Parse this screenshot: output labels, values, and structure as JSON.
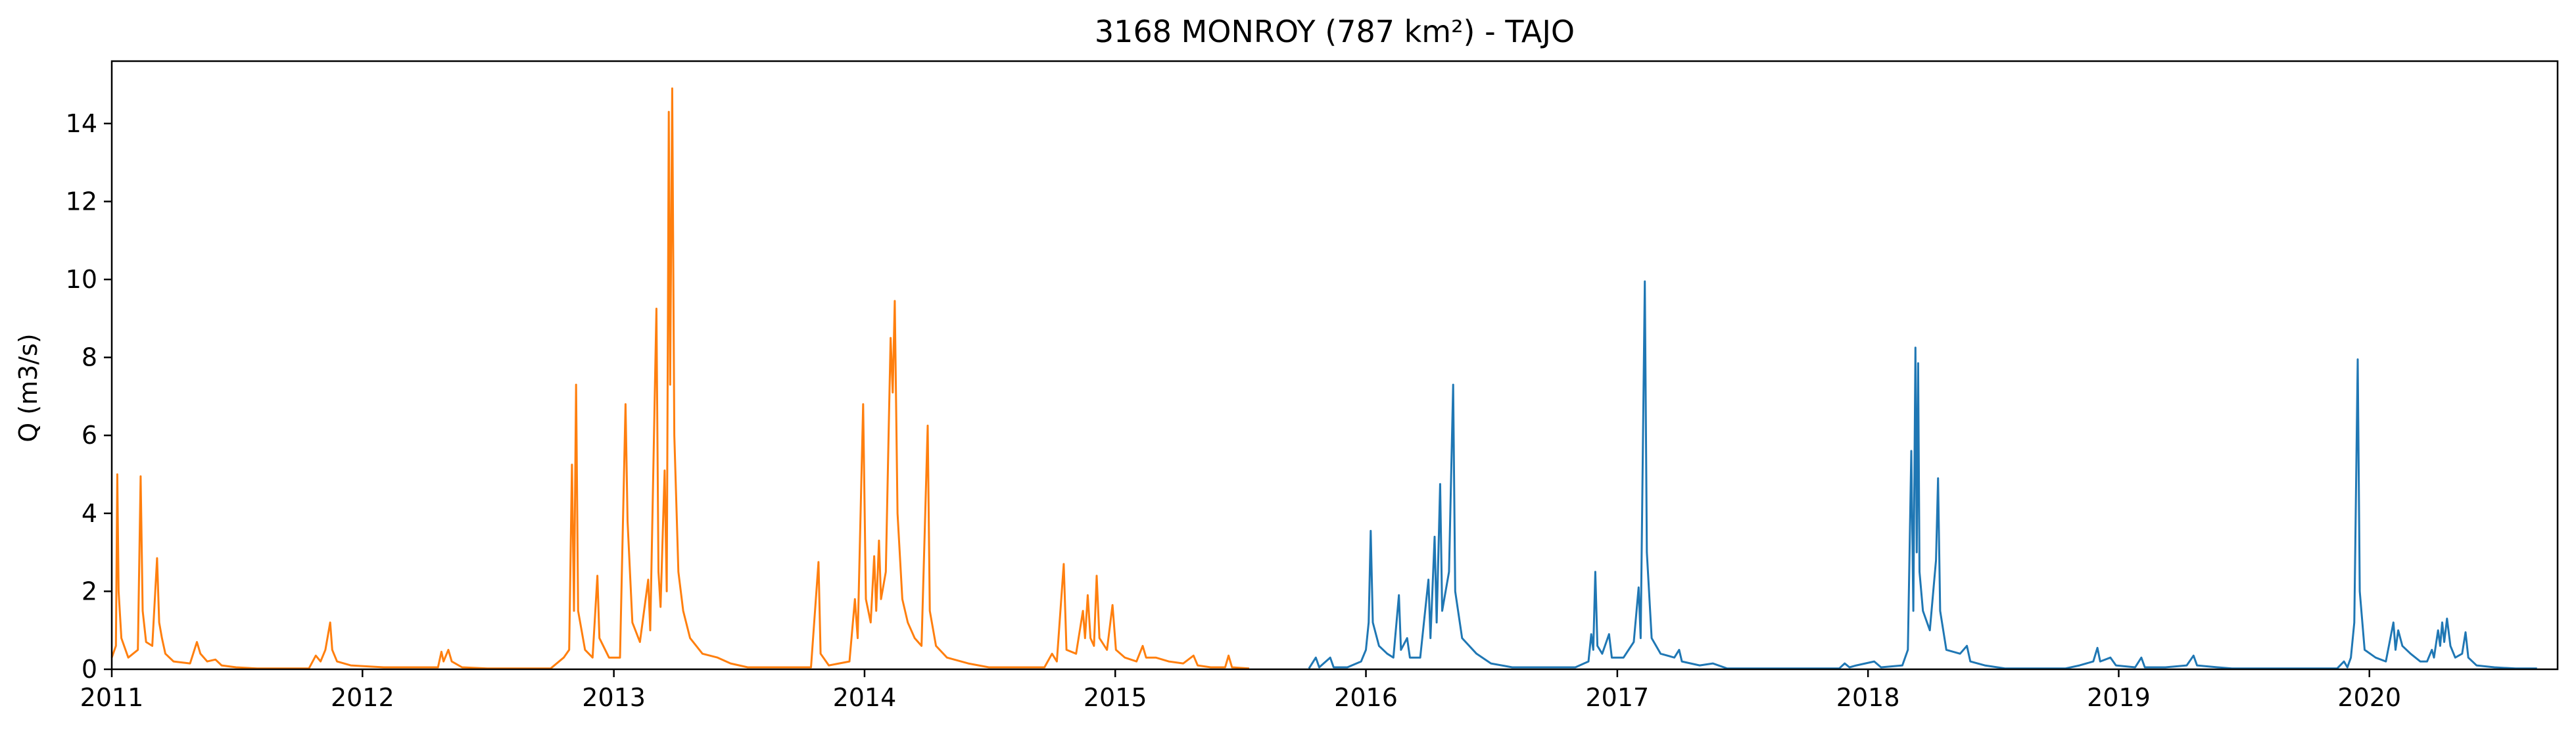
{
  "chart_data": {
    "type": "line",
    "title": "3168 MONROY (787 km²) - TAJO",
    "xlabel": "",
    "ylabel": "Q (m3/s)",
    "xlim": [
      "2011-01-01",
      "2020-10-01"
    ],
    "ylim": [
      0,
      15.6
    ],
    "xticks": [
      "2011",
      "2012",
      "2013",
      "2014",
      "2015",
      "2016",
      "2017",
      "2018",
      "2019",
      "2020"
    ],
    "yticks": [
      0,
      2,
      4,
      6,
      8,
      10,
      12,
      14
    ],
    "grid": false,
    "legend": "none",
    "series": [
      {
        "color": "#ff7f0e",
        "points": [
          [
            "2011-01-01",
            0.3
          ],
          [
            "2011-01-07",
            0.6
          ],
          [
            "2011-01-09",
            5.0
          ],
          [
            "2011-01-11",
            2.0
          ],
          [
            "2011-01-15",
            0.8
          ],
          [
            "2011-01-25",
            0.3
          ],
          [
            "2011-02-08",
            0.5
          ],
          [
            "2011-02-12",
            4.95
          ],
          [
            "2011-02-15",
            1.5
          ],
          [
            "2011-02-20",
            0.7
          ],
          [
            "2011-03-01",
            0.6
          ],
          [
            "2011-03-08",
            2.85
          ],
          [
            "2011-03-11",
            1.2
          ],
          [
            "2011-03-15",
            0.8
          ],
          [
            "2011-03-20",
            0.4
          ],
          [
            "2011-04-01",
            0.2
          ],
          [
            "2011-04-25",
            0.15
          ],
          [
            "2011-05-05",
            0.7
          ],
          [
            "2011-05-10",
            0.4
          ],
          [
            "2011-05-20",
            0.2
          ],
          [
            "2011-06-01",
            0.25
          ],
          [
            "2011-06-10",
            0.1
          ],
          [
            "2011-07-01",
            0.05
          ],
          [
            "2011-08-01",
            0.02
          ],
          [
            "2011-10-15",
            0.02
          ],
          [
            "2011-10-25",
            0.35
          ],
          [
            "2011-11-01",
            0.2
          ],
          [
            "2011-11-08",
            0.5
          ],
          [
            "2011-11-15",
            1.2
          ],
          [
            "2011-11-18",
            0.5
          ],
          [
            "2011-11-25",
            0.2
          ],
          [
            "2011-12-15",
            0.1
          ],
          [
            "2012-02-01",
            0.05
          ],
          [
            "2012-04-20",
            0.05
          ],
          [
            "2012-04-25",
            0.45
          ],
          [
            "2012-04-28",
            0.2
          ],
          [
            "2012-05-05",
            0.5
          ],
          [
            "2012-05-10",
            0.2
          ],
          [
            "2012-05-25",
            0.05
          ],
          [
            "2012-07-01",
            0.02
          ],
          [
            "2012-10-01",
            0.02
          ],
          [
            "2012-10-20",
            0.3
          ],
          [
            "2012-10-28",
            0.5
          ],
          [
            "2012-11-01",
            5.25
          ],
          [
            "2012-11-04",
            1.5
          ],
          [
            "2012-11-07",
            7.3
          ],
          [
            "2012-11-10",
            1.5
          ],
          [
            "2012-11-20",
            0.5
          ],
          [
            "2012-12-01",
            0.3
          ],
          [
            "2012-12-08",
            2.4
          ],
          [
            "2012-12-11",
            0.8
          ],
          [
            "2012-12-25",
            0.3
          ],
          [
            "2013-01-10",
            0.3
          ],
          [
            "2013-01-18",
            6.8
          ],
          [
            "2013-01-21",
            3.8
          ],
          [
            "2013-01-28",
            1.2
          ],
          [
            "2013-02-08",
            0.7
          ],
          [
            "2013-02-20",
            2.3
          ],
          [
            "2013-02-23",
            1.0
          ],
          [
            "2013-03-04",
            9.25
          ],
          [
            "2013-03-07",
            2.5
          ],
          [
            "2013-03-10",
            1.6
          ],
          [
            "2013-03-16",
            5.1
          ],
          [
            "2013-03-19",
            2.0
          ],
          [
            "2013-03-22",
            14.3
          ],
          [
            "2013-03-24",
            7.3
          ],
          [
            "2013-03-27",
            14.9
          ],
          [
            "2013-03-30",
            6.0
          ],
          [
            "2013-04-05",
            2.5
          ],
          [
            "2013-04-12",
            1.5
          ],
          [
            "2013-04-22",
            0.8
          ],
          [
            "2013-05-10",
            0.4
          ],
          [
            "2013-06-01",
            0.3
          ],
          [
            "2013-06-20",
            0.15
          ],
          [
            "2013-07-15",
            0.05
          ],
          [
            "2013-10-15",
            0.05
          ],
          [
            "2013-10-26",
            2.75
          ],
          [
            "2013-10-29",
            0.4
          ],
          [
            "2013-11-10",
            0.1
          ],
          [
            "2013-12-10",
            0.2
          ],
          [
            "2013-12-18",
            1.8
          ],
          [
            "2013-12-22",
            0.8
          ],
          [
            "2013-12-30",
            6.8
          ],
          [
            "2014-01-03",
            1.8
          ],
          [
            "2014-01-10",
            1.2
          ],
          [
            "2014-01-15",
            2.9
          ],
          [
            "2014-01-18",
            1.5
          ],
          [
            "2014-01-22",
            3.3
          ],
          [
            "2014-01-25",
            1.8
          ],
          [
            "2014-02-01",
            2.5
          ],
          [
            "2014-02-05",
            6.0
          ],
          [
            "2014-02-08",
            8.5
          ],
          [
            "2014-02-11",
            7.1
          ],
          [
            "2014-02-14",
            9.45
          ],
          [
            "2014-02-18",
            4.0
          ],
          [
            "2014-02-25",
            1.8
          ],
          [
            "2014-03-05",
            1.2
          ],
          [
            "2014-03-15",
            0.8
          ],
          [
            "2014-03-25",
            0.6
          ],
          [
            "2014-04-03",
            6.25
          ],
          [
            "2014-04-06",
            1.5
          ],
          [
            "2014-04-15",
            0.6
          ],
          [
            "2014-05-01",
            0.3
          ],
          [
            "2014-06-01",
            0.15
          ],
          [
            "2014-07-01",
            0.05
          ],
          [
            "2014-09-20",
            0.05
          ],
          [
            "2014-10-01",
            0.4
          ],
          [
            "2014-10-08",
            0.2
          ],
          [
            "2014-10-18",
            2.7
          ],
          [
            "2014-10-22",
            0.5
          ],
          [
            "2014-11-05",
            0.4
          ],
          [
            "2014-11-15",
            1.5
          ],
          [
            "2014-11-18",
            0.8
          ],
          [
            "2014-11-22",
            1.9
          ],
          [
            "2014-11-26",
            0.8
          ],
          [
            "2014-12-01",
            0.6
          ],
          [
            "2014-12-05",
            2.4
          ],
          [
            "2014-12-09",
            0.8
          ],
          [
            "2014-12-20",
            0.5
          ],
          [
            "2014-12-28",
            1.65
          ],
          [
            "2015-01-02",
            0.5
          ],
          [
            "2015-01-15",
            0.3
          ],
          [
            "2015-02-01",
            0.2
          ],
          [
            "2015-02-10",
            0.6
          ],
          [
            "2015-02-15",
            0.3
          ],
          [
            "2015-03-01",
            0.3
          ],
          [
            "2015-03-20",
            0.2
          ],
          [
            "2015-04-10",
            0.15
          ],
          [
            "2015-04-25",
            0.35
          ],
          [
            "2015-05-01",
            0.1
          ],
          [
            "2015-05-20",
            0.05
          ],
          [
            "2015-06-10",
            0.05
          ],
          [
            "2015-06-15",
            0.35
          ],
          [
            "2015-06-20",
            0.05
          ],
          [
            "2015-07-15",
            0.02
          ]
        ]
      },
      {
        "color": "#1f77b4",
        "points": [
          [
            "2015-10-10",
            0.02
          ],
          [
            "2015-10-20",
            0.3
          ],
          [
            "2015-10-25",
            0.05
          ],
          [
            "2015-11-10",
            0.3
          ],
          [
            "2015-11-15",
            0.05
          ],
          [
            "2015-12-05",
            0.05
          ],
          [
            "2015-12-25",
            0.2
          ],
          [
            "2016-01-01",
            0.5
          ],
          [
            "2016-01-05",
            1.2
          ],
          [
            "2016-01-08",
            3.55
          ],
          [
            "2016-01-11",
            1.2
          ],
          [
            "2016-01-20",
            0.6
          ],
          [
            "2016-02-01",
            0.4
          ],
          [
            "2016-02-10",
            0.3
          ],
          [
            "2016-02-18",
            1.9
          ],
          [
            "2016-02-21",
            0.5
          ],
          [
            "2016-03-01",
            0.8
          ],
          [
            "2016-03-05",
            0.3
          ],
          [
            "2016-03-20",
            0.3
          ],
          [
            "2016-04-01",
            2.3
          ],
          [
            "2016-04-04",
            0.8
          ],
          [
            "2016-04-10",
            3.4
          ],
          [
            "2016-04-13",
            1.2
          ],
          [
            "2016-04-18",
            4.75
          ],
          [
            "2016-04-21",
            1.5
          ],
          [
            "2016-05-01",
            2.5
          ],
          [
            "2016-05-07",
            7.3
          ],
          [
            "2016-05-10",
            2.0
          ],
          [
            "2016-05-20",
            0.8
          ],
          [
            "2016-06-10",
            0.4
          ],
          [
            "2016-07-01",
            0.15
          ],
          [
            "2016-08-01",
            0.05
          ],
          [
            "2016-11-01",
            0.05
          ],
          [
            "2016-11-20",
            0.2
          ],
          [
            "2016-11-24",
            0.9
          ],
          [
            "2016-11-27",
            0.5
          ],
          [
            "2016-11-30",
            2.5
          ],
          [
            "2016-12-03",
            0.6
          ],
          [
            "2016-12-10",
            0.4
          ],
          [
            "2016-12-20",
            0.9
          ],
          [
            "2016-12-24",
            0.3
          ],
          [
            "2017-01-10",
            0.3
          ],
          [
            "2017-01-25",
            0.7
          ],
          [
            "2017-02-01",
            2.1
          ],
          [
            "2017-02-04",
            0.8
          ],
          [
            "2017-02-10",
            9.95
          ],
          [
            "2017-02-13",
            3.0
          ],
          [
            "2017-02-20",
            0.8
          ],
          [
            "2017-03-05",
            0.4
          ],
          [
            "2017-03-25",
            0.3
          ],
          [
            "2017-04-01",
            0.5
          ],
          [
            "2017-04-05",
            0.2
          ],
          [
            "2017-05-01",
            0.1
          ],
          [
            "2017-05-20",
            0.15
          ],
          [
            "2017-06-10",
            0.02
          ],
          [
            "2017-11-20",
            0.02
          ],
          [
            "2017-11-28",
            0.15
          ],
          [
            "2017-12-05",
            0.05
          ],
          [
            "2017-12-15",
            0.1
          ],
          [
            "2018-01-10",
            0.2
          ],
          [
            "2018-01-20",
            0.05
          ],
          [
            "2018-02-20",
            0.1
          ],
          [
            "2018-02-28",
            0.5
          ],
          [
            "2018-03-05",
            5.6
          ],
          [
            "2018-03-08",
            1.5
          ],
          [
            "2018-03-11",
            8.25
          ],
          [
            "2018-03-13",
            3.0
          ],
          [
            "2018-03-15",
            7.85
          ],
          [
            "2018-03-17",
            2.5
          ],
          [
            "2018-03-22",
            1.5
          ],
          [
            "2018-04-01",
            1.0
          ],
          [
            "2018-04-10",
            2.8
          ],
          [
            "2018-04-13",
            4.9
          ],
          [
            "2018-04-16",
            1.5
          ],
          [
            "2018-04-25",
            0.5
          ],
          [
            "2018-05-15",
            0.4
          ],
          [
            "2018-05-25",
            0.6
          ],
          [
            "2018-05-30",
            0.2
          ],
          [
            "2018-06-20",
            0.1
          ],
          [
            "2018-07-20",
            0.02
          ],
          [
            "2018-10-15",
            0.02
          ],
          [
            "2018-11-05",
            0.1
          ],
          [
            "2018-11-25",
            0.2
          ],
          [
            "2018-12-01",
            0.55
          ],
          [
            "2018-12-05",
            0.2
          ],
          [
            "2018-12-20",
            0.3
          ],
          [
            "2018-12-28",
            0.1
          ],
          [
            "2019-01-25",
            0.05
          ],
          [
            "2019-02-03",
            0.3
          ],
          [
            "2019-02-08",
            0.05
          ],
          [
            "2019-03-10",
            0.05
          ],
          [
            "2019-04-10",
            0.1
          ],
          [
            "2019-04-20",
            0.35
          ],
          [
            "2019-04-25",
            0.1
          ],
          [
            "2019-05-25",
            0.05
          ],
          [
            "2019-06-15",
            0.02
          ],
          [
            "2019-11-15",
            0.02
          ],
          [
            "2019-11-25",
            0.2
          ],
          [
            "2019-11-30",
            0.05
          ],
          [
            "2019-12-05",
            0.3
          ],
          [
            "2019-12-10",
            1.2
          ],
          [
            "2019-12-15",
            7.95
          ],
          [
            "2019-12-18",
            2.0
          ],
          [
            "2019-12-25",
            0.5
          ],
          [
            "2020-01-10",
            0.3
          ],
          [
            "2020-01-25",
            0.2
          ],
          [
            "2020-02-05",
            1.2
          ],
          [
            "2020-02-08",
            0.5
          ],
          [
            "2020-02-12",
            1.0
          ],
          [
            "2020-02-18",
            0.6
          ],
          [
            "2020-03-01",
            0.4
          ],
          [
            "2020-03-15",
            0.2
          ],
          [
            "2020-03-25",
            0.2
          ],
          [
            "2020-04-01",
            0.5
          ],
          [
            "2020-04-04",
            0.3
          ],
          [
            "2020-04-10",
            1.0
          ],
          [
            "2020-04-13",
            0.6
          ],
          [
            "2020-04-16",
            1.2
          ],
          [
            "2020-04-19",
            0.7
          ],
          [
            "2020-04-23",
            1.3
          ],
          [
            "2020-04-28",
            0.6
          ],
          [
            "2020-05-05",
            0.3
          ],
          [
            "2020-05-15",
            0.4
          ],
          [
            "2020-05-20",
            0.95
          ],
          [
            "2020-05-24",
            0.3
          ],
          [
            "2020-06-05",
            0.1
          ],
          [
            "2020-07-01",
            0.05
          ],
          [
            "2020-08-01",
            0.02
          ],
          [
            "2020-09-01",
            0.02
          ]
        ]
      }
    ]
  }
}
